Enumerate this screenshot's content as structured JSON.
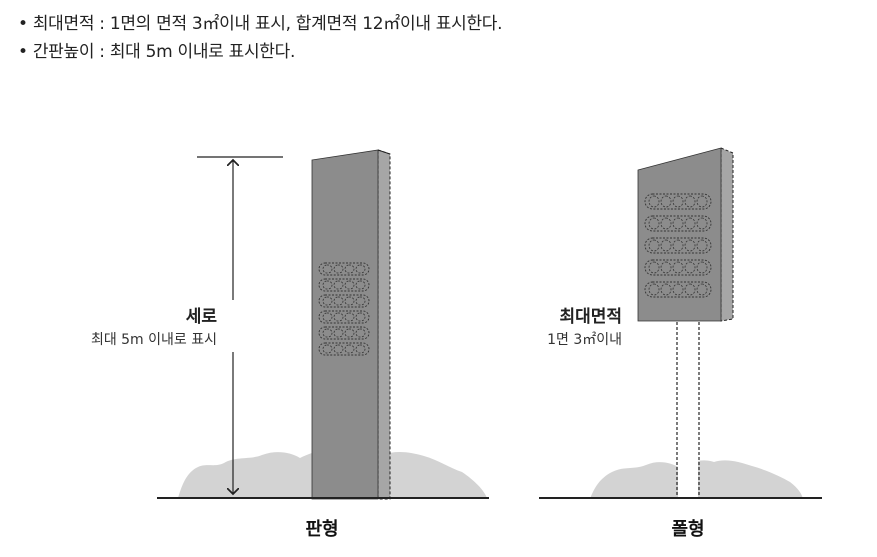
{
  "bullets": [
    "• 최대면적 : 1면의 면적 3㎡이내 표시, 합계면적 12㎡이내 표시한다.",
    "• 간판높이 : 최대 5m 이내로 표시한다."
  ],
  "panel_sign": {
    "height_label": "세로",
    "height_note": "최대 5m 이내로 표시",
    "caption": "판형"
  },
  "pole_sign": {
    "area_label": "최대면적",
    "area_note": "1면 3㎡이내",
    "caption": "폴형"
  },
  "colors": {
    "sign_face": "#8c8c8c",
    "sign_side": "#a6a6a6",
    "ground_mound": "#d3d3d3",
    "line": "#222222"
  }
}
